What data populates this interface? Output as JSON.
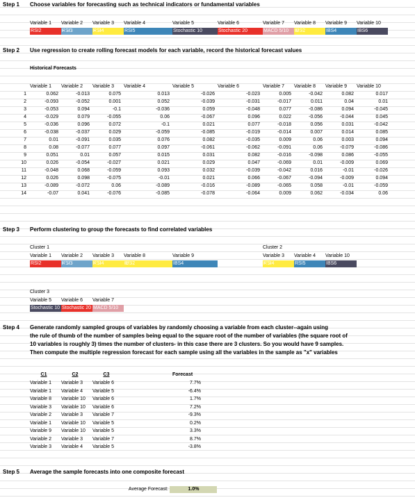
{
  "steps": [
    {
      "num": "Step 1",
      "text": "Choose variables for forecasting such as technical indicators or fundamental variables"
    },
    {
      "num": "Step 2",
      "text": "Use regression to create rolling forecast models for each variable, record the  historical forecast values"
    },
    {
      "num": "Step 3",
      "text": "Perform clustering to group the forecasts  to find correlated variables"
    },
    {
      "num": "Step 4",
      "lines": [
        "Generate randomly sampled groups of variables by randomly choosing a variable from each cluster--again using",
        "the rule of thumb of the number of samples being equal to the square root of the number of variables (the square root of",
        "10 variables is roughly 3) times the number of clusters- in this case there are 3 clusters. So you would have 9 samples.",
        "Then compute the multiple regression forecast for each sample using all the variables in the sample as \"x\" variables"
      ]
    },
    {
      "num": "Step 5",
      "text": "Average the sample forecasts into one composite forecast"
    }
  ],
  "variables": {
    "headers": [
      "Variable 1",
      "Variable 2",
      "Variable 3",
      "Variable 4",
      "Variable 5",
      "Variable 6",
      "Variable 7",
      "Variable 8",
      "Variable 9",
      "Variable 10"
    ],
    "names": [
      "RSI2",
      "RSI3",
      "RSI4",
      "RSI5",
      "Stochastic 10",
      "Stochastic 20",
      "MACD 5/10",
      "IBS2",
      "IBS4",
      "IBS6"
    ]
  },
  "historical": {
    "title": "Historical Forecasts",
    "rows": [
      [
        "1",
        "0.062",
        "-0.013",
        "0.075",
        "0.013",
        "-0.026",
        "-0.023",
        "0.005",
        "-0.042",
        "0.082",
        "0.017"
      ],
      [
        "2",
        "-0.093",
        "-0.052",
        "0.001",
        "0.052",
        "-0.039",
        "-0.031",
        "-0.017",
        "0.011",
        "0.04",
        "0.01"
      ],
      [
        "3",
        "-0.053",
        "0.094",
        "-0.1",
        "-0.036",
        "0.059",
        "-0.048",
        "0.077",
        "-0.086",
        "0.094",
        "-0.045"
      ],
      [
        "4",
        "-0.029",
        "0.079",
        "-0.055",
        "0.06",
        "-0.067",
        "0.096",
        "0.022",
        "-0.056",
        "-0.044",
        "0.045"
      ],
      [
        "5",
        "-0.036",
        "0.096",
        "0.072",
        "-0.1",
        "0.021",
        "0.077",
        "-0.018",
        "0.056",
        "0.031",
        "-0.042"
      ],
      [
        "6",
        "-0.038",
        "-0.037",
        "0.029",
        "-0.059",
        "-0.085",
        "-0.019",
        "-0.014",
        "0.007",
        "0.014",
        "0.085"
      ],
      [
        "7",
        "0.01",
        "-0.091",
        "0.035",
        "0.076",
        "0.082",
        "-0.035",
        "0.009",
        "0.06",
        "0.003",
        "0.094"
      ],
      [
        "8",
        "0.08",
        "-0.077",
        "0.077",
        "0.097",
        "-0.061",
        "-0.062",
        "-0.091",
        "0.06",
        "-0.079",
        "-0.086"
      ],
      [
        "9",
        "0.051",
        "0.01",
        "0.057",
        "0.015",
        "0.031",
        "0.082",
        "-0.016",
        "-0.098",
        "0.086",
        "-0.055"
      ],
      [
        "10",
        "0.026",
        "-0.054",
        "-0.027",
        "0.021",
        "0.029",
        "0.047",
        "-0.069",
        "0.01",
        "-0.009",
        "0.069"
      ],
      [
        "11",
        "-0.048",
        "0.068",
        "-0.059",
        "0.093",
        "0.032",
        "-0.039",
        "-0.042",
        "0.016",
        "-0.01",
        "-0.026"
      ],
      [
        "12",
        "0.026",
        "0.098",
        "-0.075",
        "-0.01",
        "0.021",
        "0.066",
        "-0.067",
        "-0.094",
        "-0.009",
        "0.094"
      ],
      [
        "13",
        "-0.089",
        "-0.072",
        "0.06",
        "-0.089",
        "-0.016",
        "-0.089",
        "-0.065",
        "0.058",
        "-0.01",
        "-0.059"
      ],
      [
        "14",
        "-0.07",
        "0.041",
        "-0.076",
        "-0.085",
        "-0.078",
        "-0.064",
        "0.009",
        "0.062",
        "-0.034",
        "0.06"
      ]
    ]
  },
  "clusters": {
    "c1": {
      "title": "Cluster 1",
      "headers": [
        "Variable 1",
        "Variable 2",
        "Variable 3",
        "Variable 8",
        "Variable 9"
      ],
      "names": [
        "RSI2",
        "RSI3",
        "RSI4",
        "IBS2",
        "IBS4"
      ]
    },
    "c2": {
      "title": "Cluster 2",
      "headers": [
        "Variable 3",
        "Variable 4",
        "Variable 10"
      ],
      "names": [
        "RSI4",
        "RSI5",
        "IBS6"
      ]
    },
    "c3": {
      "title": "Cluster 3",
      "headers": [
        "Variable 5",
        "Variable 6",
        "Variable 7"
      ],
      "names": [
        "Stochastic 10",
        "Stochastic 20",
        "MACD 5/10"
      ]
    }
  },
  "samples": {
    "headers": [
      "C1",
      "C2",
      "C3",
      "Forecast"
    ],
    "rows": [
      [
        "Variable 1",
        "Variable 3",
        "Variable 6",
        "7.7%"
      ],
      [
        "Variable 1",
        "Variable 4",
        "Variable 5",
        "-6.4%"
      ],
      [
        "Variable 8",
        "Variable 10",
        "Variable 6",
        "1.7%"
      ],
      [
        "Variable 3",
        "Variable 10",
        "Variable 6",
        "7.2%"
      ],
      [
        "Variable 2",
        "Variable 3",
        "Variable 7",
        "-9.3%"
      ],
      [
        "Variable 1",
        "Variable 10",
        "Variable 5",
        "0.2%"
      ],
      [
        "Variable 9",
        "Variable 10",
        "Variable 5",
        "3.3%"
      ],
      [
        "Variable 2",
        "Variable 3",
        "Variable 7",
        "8.7%"
      ],
      [
        "Variable 3",
        "Variable 4",
        "Variable 5",
        "-3.8%"
      ]
    ]
  },
  "average": {
    "label": "Average Forecast:",
    "value": "1.0%"
  },
  "colors": {
    "red": "#e8312a",
    "blue": "#3e86b8",
    "yellow": "#ffe400",
    "dark": "#4a4a60",
    "pink": "#e09fa6",
    "avg_fill": "#d3d7b2"
  }
}
